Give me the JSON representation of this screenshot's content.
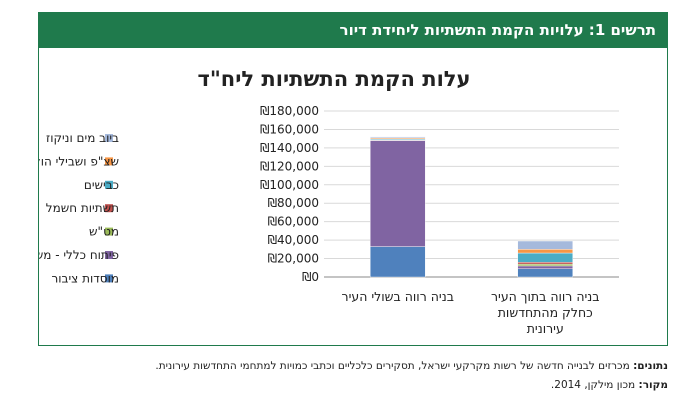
{
  "figure": {
    "header": "תרשים 1: עלויות הקמת התשתיות ליחידת דיור"
  },
  "chart_data": {
    "type": "bar",
    "stacked": true,
    "title": "עלות הקמת התשתיות ליח\"ד",
    "categories": [
      [
        "בניה רווה בשולי העיר"
      ],
      [
        "בניה רווה בתוך העיר",
        "כחלק מהתחדשות",
        "עירונית"
      ]
    ],
    "series": [
      {
        "name": "מוסדות ציבור",
        "color": "#4f81bd",
        "values": [
          33000,
          9000
        ]
      },
      {
        "name": "פיתוח כללי - משב\"ש",
        "color": "#8064a2",
        "values": [
          115000,
          3000
        ]
      },
      {
        "name": "מט\"ש",
        "color": "#9bbb59",
        "values": [
          500,
          2000
        ]
      },
      {
        "name": "תשתיות חשמל",
        "color": "#c0504d",
        "values": [
          500,
          2000
        ]
      },
      {
        "name": "כבישים",
        "color": "#4bacc6",
        "values": [
          1000,
          10000
        ]
      },
      {
        "name": "שצ\"פ ושבילי הולכי רגל",
        "color": "#f79646",
        "values": [
          1000,
          4000
        ]
      },
      {
        "name": "ביוב מים וניקוז",
        "color": "#a5b9dc",
        "values": [
          1000,
          9000
        ]
      }
    ],
    "ylim": [
      0,
      180000
    ],
    "yticks": [
      "₪0",
      "₪20,000",
      "₪40,000",
      "₪60,000",
      "₪80,000",
      "₪100,000",
      "₪120,000",
      "₪140,000",
      "₪160,000",
      "₪180,000"
    ],
    "ytick_values": [
      0,
      20000,
      40000,
      60000,
      80000,
      100000,
      120000,
      140000,
      160000,
      180000
    ],
    "grid": true,
    "legend": "left"
  },
  "notes": {
    "data_label": "נתונים:",
    "data_text": "מכרזים לבנייה חדשה של רשות מקרקעי ישראל, תסקירים כלכליים וכתבי כמויות למתחמי התחדשות עירונית.",
    "source_label": "מקור:",
    "source_text": "מכון מילקן, 2014."
  }
}
